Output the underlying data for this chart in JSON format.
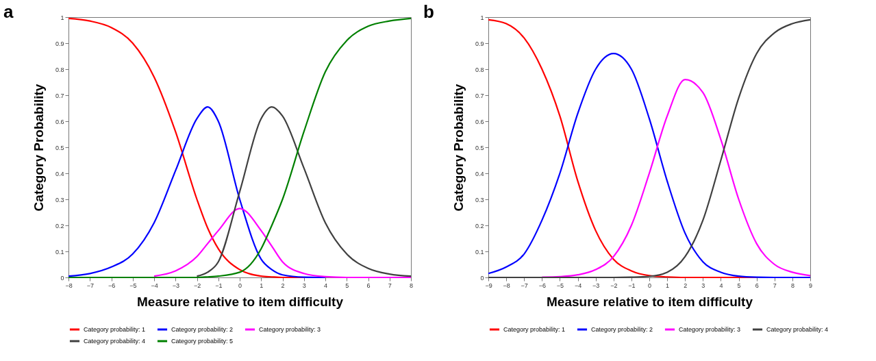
{
  "chart_data": [
    {
      "type": "line",
      "title": "a",
      "xlabel": "Measure relative to item difficulty",
      "ylabel": "Category  Probability",
      "x": [
        -8,
        -7,
        -6,
        -5,
        -4,
        -3,
        -2,
        -1.5,
        -1,
        0,
        1,
        1.5,
        2,
        3,
        4,
        5,
        6,
        7,
        8
      ],
      "series": [
        {
          "name": "Category probability: 1",
          "color": "#ff0000",
          "values": [
            0.995,
            0.985,
            0.96,
            0.9,
            0.77,
            0.56,
            0.3,
            0.19,
            0.11,
            0.03,
            0.005,
            0.002,
            0,
            0,
            null,
            null,
            null,
            null,
            null
          ]
        },
        {
          "name": "Category probability: 2",
          "color": "#0000ff",
          "values": [
            0.005,
            0.015,
            0.04,
            0.09,
            0.21,
            0.41,
            0.61,
            0.655,
            0.6,
            0.3,
            0.07,
            0.03,
            0.01,
            0.001,
            0,
            null,
            null,
            null,
            null
          ]
        },
        {
          "name": "Category probability: 3",
          "color": "#ff00ff",
          "values": [
            null,
            null,
            null,
            null,
            0.005,
            0.025,
            0.08,
            0.13,
            0.18,
            0.265,
            0.18,
            0.12,
            0.06,
            0.015,
            0.003,
            0,
            0,
            0,
            0
          ]
        },
        {
          "name": "Category probability: 4",
          "color": "#404040",
          "values": [
            null,
            null,
            null,
            null,
            null,
            null,
            0.005,
            0.02,
            0.06,
            0.33,
            0.61,
            0.655,
            0.62,
            0.42,
            0.21,
            0.09,
            0.035,
            0.013,
            0.005
          ]
        },
        {
          "name": "Category probability: 5",
          "color": "#008000",
          "values": [
            0,
            0,
            0,
            0,
            0,
            0,
            0,
            0.002,
            0.005,
            0.02,
            0.11,
            0.2,
            0.3,
            0.56,
            0.79,
            0.91,
            0.965,
            0.985,
            0.995
          ]
        }
      ],
      "xlim": [
        -8,
        8
      ],
      "xticks": [
        -8,
        -7,
        -6,
        -5,
        -4,
        -3,
        -2,
        -1,
        0,
        1,
        2,
        3,
        4,
        5,
        6,
        7,
        8
      ],
      "ylim": [
        0,
        1
      ],
      "yticks": [
        0,
        0.1,
        0.2,
        0.3,
        0.4,
        0.5,
        0.6,
        0.7,
        0.8,
        0.9,
        1
      ],
      "grid": false,
      "legend": "bottom",
      "marker": "none",
      "line_style": "solid"
    },
    {
      "type": "line",
      "title": "b",
      "xlabel": "Measure relative to item difficulty",
      "ylabel": "Category  Probability",
      "x": [
        -9,
        -8,
        -7,
        -6,
        -5,
        -4,
        -3,
        -2,
        -1,
        0,
        1,
        2,
        3,
        4,
        5,
        6,
        7,
        8,
        9
      ],
      "series": [
        {
          "name": "Category probability: 1",
          "color": "#ff0000",
          "values": [
            0.99,
            0.975,
            0.92,
            0.8,
            0.62,
            0.37,
            0.18,
            0.07,
            0.025,
            0.007,
            0.002,
            0,
            0,
            0,
            0,
            0,
            null,
            null,
            null
          ]
        },
        {
          "name": "Category probability: 2",
          "color": "#0000ff",
          "values": [
            0.015,
            0.04,
            0.09,
            0.22,
            0.4,
            0.63,
            0.8,
            0.86,
            0.8,
            0.61,
            0.37,
            0.17,
            0.06,
            0.02,
            0.005,
            0.001,
            0,
            0,
            0
          ]
        },
        {
          "name": "Category probability: 3",
          "color": "#ff00ff",
          "values": [
            null,
            null,
            null,
            0.001,
            0.003,
            0.01,
            0.03,
            0.08,
            0.2,
            0.4,
            0.62,
            0.76,
            0.71,
            0.53,
            0.3,
            0.13,
            0.05,
            0.02,
            0.007
          ]
        },
        {
          "name": "Category probability: 4",
          "color": "#404040",
          "values": [
            0,
            0,
            0,
            0,
            0,
            0,
            0,
            0,
            0.001,
            0.004,
            0.02,
            0.08,
            0.22,
            0.45,
            0.69,
            0.86,
            0.94,
            0.975,
            0.99
          ]
        }
      ],
      "xlim": [
        -9,
        9
      ],
      "xticks": [
        -9,
        -8,
        -7,
        -6,
        -5,
        -4,
        -3,
        -2,
        -1,
        0,
        1,
        2,
        3,
        4,
        5,
        6,
        7,
        8,
        9
      ],
      "ylim": [
        0,
        1
      ],
      "yticks": [
        0,
        0.1,
        0.2,
        0.3,
        0.4,
        0.5,
        0.6,
        0.7,
        0.8,
        0.9,
        1
      ],
      "grid": false,
      "legend": "bottom",
      "marker": "none",
      "line_style": "solid"
    }
  ]
}
